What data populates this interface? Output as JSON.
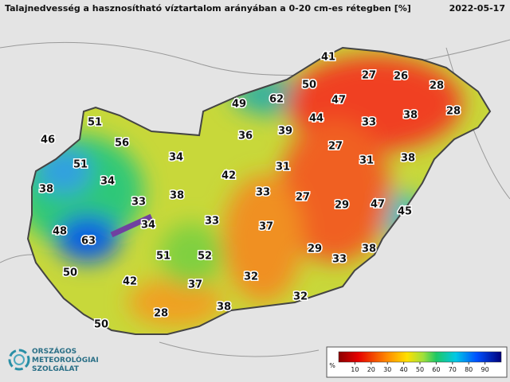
{
  "header": {
    "title": "Talajnedvesség a hasznosítható víztartalom arányában a 0-20 cm-es rétegben [%]",
    "date": "2022-05-17"
  },
  "labels": [
    41,
    27,
    26,
    28,
    50,
    62,
    47,
    49,
    38,
    28,
    51,
    44,
    33,
    36,
    39,
    46,
    56,
    27,
    34,
    31,
    38,
    51,
    31,
    42,
    34,
    38,
    33,
    27,
    38,
    33,
    29,
    47,
    45,
    33,
    34,
    37,
    48,
    63,
    29,
    38,
    51,
    52,
    33,
    50,
    32,
    42,
    37,
    32,
    38,
    28,
    50
  ],
  "legend": {
    "unit": "%",
    "range": [
      0,
      100
    ],
    "ticks": [
      10,
      20,
      30,
      40,
      50,
      60,
      70,
      80,
      90
    ]
  },
  "logo": {
    "line1": "ORSZÁGOS",
    "line2": "METEOROLÓGIAI",
    "line3": "SZOLGÁLAT"
  }
}
